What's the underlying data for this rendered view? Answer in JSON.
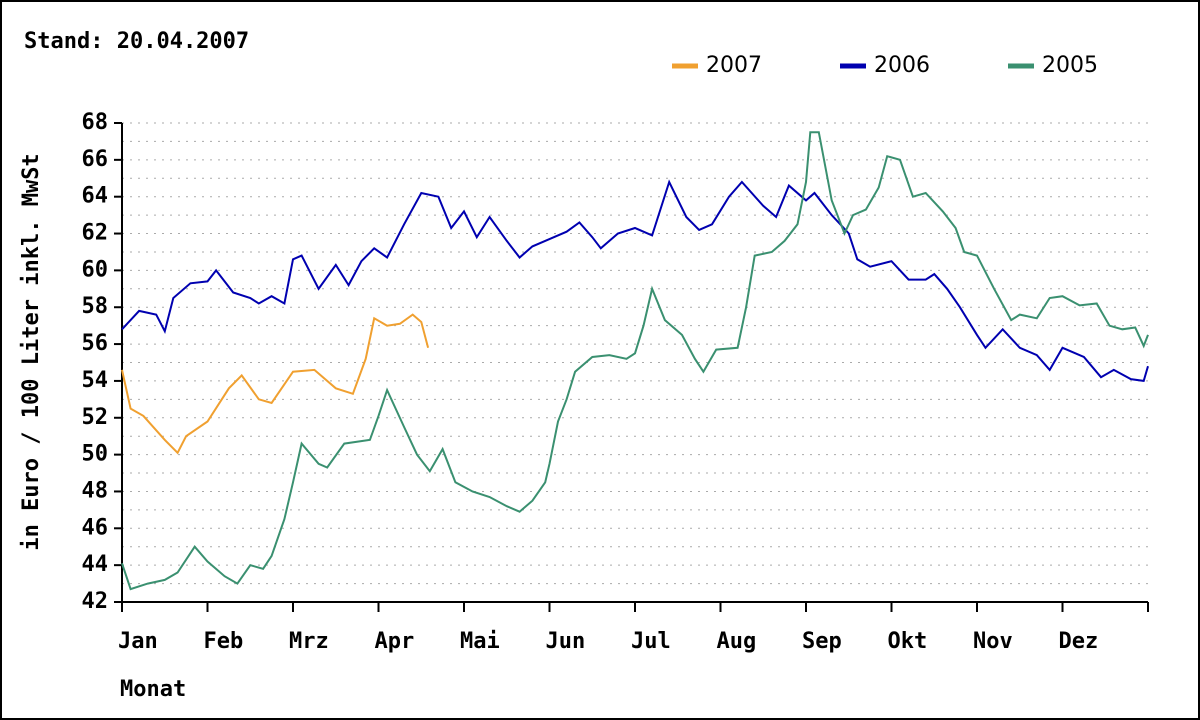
{
  "chart_data": {
    "type": "line",
    "title": "Stand: 20.04.2007",
    "y_label": "in Euro / 100 Liter inkl. MwSt",
    "x_label": "Monat",
    "categories": [
      "Jan",
      "Feb",
      "Mrz",
      "Apr",
      "Mai",
      "Jun",
      "Jul",
      "Aug",
      "Sep",
      "Okt",
      "Nov",
      "Dez"
    ],
    "xlim": [
      0,
      12
    ],
    "ylim": [
      42,
      68
    ],
    "yticks": [
      42,
      44,
      46,
      48,
      50,
      52,
      54,
      56,
      58,
      60,
      62,
      64,
      66,
      68
    ],
    "yminorticks": [
      43,
      45,
      47,
      49,
      51,
      53,
      55,
      57,
      59,
      61,
      63,
      65,
      67
    ],
    "grid": true,
    "legend": "top-right",
    "series": [
      {
        "name": "2007",
        "color": "#f0a030",
        "x": [
          0,
          0.1,
          0.25,
          0.5,
          0.65,
          0.75,
          1,
          1.25,
          1.4,
          1.6,
          1.75,
          2,
          2.25,
          2.5,
          2.7,
          2.85,
          2.95,
          3.1,
          3.25,
          3.4,
          3.5,
          3.58
        ],
        "values": [
          54.6,
          52.5,
          52.1,
          50.8,
          50.1,
          51,
          51.8,
          53.6,
          54.3,
          53,
          52.8,
          54.5,
          54.6,
          53.6,
          53.3,
          55.2,
          57.4,
          57,
          57.1,
          57.6,
          57.2,
          55.8
        ]
      },
      {
        "name": "2006",
        "color": "#0000b0",
        "x": [
          0,
          0.2,
          0.4,
          0.5,
          0.6,
          0.8,
          1,
          1.1,
          1.3,
          1.5,
          1.6,
          1.75,
          1.9,
          2,
          2.1,
          2.3,
          2.5,
          2.65,
          2.8,
          2.95,
          3.1,
          3.3,
          3.5,
          3.7,
          3.85,
          4,
          4.15,
          4.3,
          4.5,
          4.65,
          4.8,
          5,
          5.2,
          5.35,
          5.5,
          5.6,
          5.8,
          6,
          6.2,
          6.4,
          6.6,
          6.75,
          6.9,
          7.1,
          7.25,
          7.5,
          7.65,
          7.8,
          8,
          8.1,
          8.3,
          8.5,
          8.6,
          8.75,
          9,
          9.2,
          9.4,
          9.5,
          9.65,
          9.8,
          10,
          10.1,
          10.3,
          10.5,
          10.7,
          10.85,
          11,
          11.25,
          11.45,
          11.6,
          11.8,
          11.95,
          12
        ],
        "values": [
          56.8,
          57.8,
          57.6,
          56.7,
          58.5,
          59.3,
          59.4,
          60,
          58.8,
          58.5,
          58.2,
          58.6,
          58.2,
          60.6,
          60.8,
          59,
          60.3,
          59.2,
          60.5,
          61.2,
          60.7,
          62.5,
          64.2,
          64,
          62.3,
          63.2,
          61.8,
          62.9,
          61.6,
          60.7,
          61.3,
          61.7,
          62.1,
          62.6,
          61.8,
          61.2,
          62,
          62.3,
          61.9,
          64.8,
          62.9,
          62.2,
          62.5,
          64,
          64.8,
          63.5,
          62.9,
          64.6,
          63.8,
          64.2,
          63,
          62,
          60.6,
          60.2,
          60.5,
          59.5,
          59.5,
          59.8,
          59,
          58,
          56.5,
          55.8,
          56.8,
          55.8,
          55.4,
          54.6,
          55.8,
          55.3,
          54.2,
          54.6,
          54.1,
          54,
          54.8
        ]
      },
      {
        "name": "2005",
        "color": "#3a9070",
        "x": [
          0,
          0.1,
          0.3,
          0.5,
          0.65,
          0.85,
          1,
          1.2,
          1.35,
          1.5,
          1.65,
          1.75,
          1.9,
          2,
          2.1,
          2.3,
          2.4,
          2.6,
          2.9,
          3,
          3.1,
          3.3,
          3.45,
          3.6,
          3.75,
          3.9,
          4.1,
          4.3,
          4.5,
          4.65,
          4.8,
          4.95,
          5,
          5.1,
          5.2,
          5.3,
          5.5,
          5.7,
          5.9,
          6,
          6.1,
          6.2,
          6.35,
          6.55,
          6.7,
          6.8,
          6.95,
          7.2,
          7.3,
          7.4,
          7.6,
          7.75,
          7.9,
          8,
          8.05,
          8.15,
          8.3,
          8.45,
          8.55,
          8.7,
          8.85,
          8.95,
          9.1,
          9.25,
          9.4,
          9.6,
          9.75,
          9.85,
          10,
          10.2,
          10.4,
          10.5,
          10.7,
          10.85,
          11,
          11.2,
          11.4,
          11.55,
          11.7,
          11.85,
          11.95,
          12
        ],
        "values": [
          44.1,
          42.7,
          43,
          43.2,
          43.6,
          45,
          44.2,
          43.4,
          43,
          44,
          43.8,
          44.5,
          46.5,
          48.5,
          50.6,
          49.5,
          49.3,
          50.6,
          50.8,
          52.1,
          53.5,
          51.5,
          50,
          49.1,
          50.3,
          48.5,
          48,
          47.7,
          47.2,
          46.9,
          47.5,
          48.5,
          49.5,
          51.8,
          53,
          54.5,
          55.3,
          55.4,
          55.2,
          55.5,
          57,
          59,
          57.3,
          56.5,
          55.2,
          54.5,
          55.7,
          55.8,
          58,
          60.8,
          61,
          61.6,
          62.5,
          64.8,
          67.5,
          67.5,
          63.8,
          62,
          63,
          63.3,
          64.5,
          66.2,
          66,
          64,
          64.2,
          63.2,
          62.3,
          61,
          60.8,
          59,
          57.3,
          57.6,
          57.4,
          58.5,
          58.6,
          58.1,
          58.2,
          57,
          56.8,
          56.9,
          55.9,
          56.5
        ]
      }
    ]
  }
}
